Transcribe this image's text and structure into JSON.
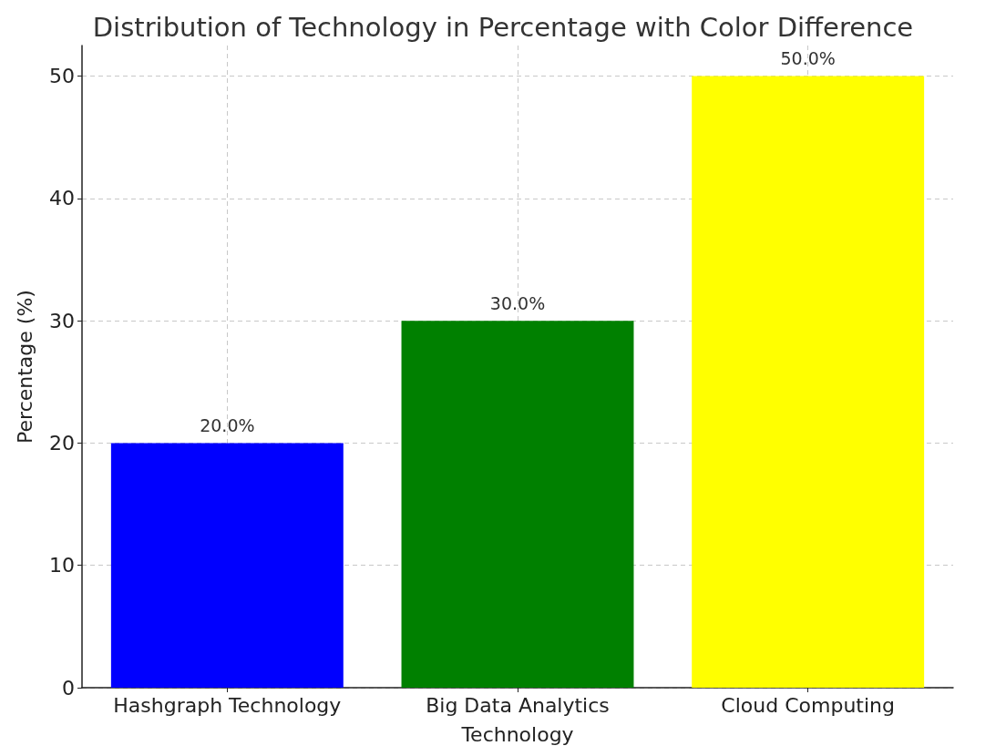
{
  "chart_data": {
    "type": "bar",
    "title": "Distribution of Technology in Percentage with Color Difference",
    "xlabel": "Technology",
    "ylabel": "Percentage (%)",
    "categories": [
      "Hashgraph Technology",
      "Big Data Analytics",
      "Cloud Computing"
    ],
    "values": [
      20,
      30,
      50
    ],
    "colors": [
      "#0000ff",
      "#008000",
      "#ffff00"
    ],
    "value_labels": [
      "20.0%",
      "30.0%",
      "50.0%"
    ],
    "ylim": [
      0,
      52.5
    ],
    "yticks": [
      0,
      10,
      20,
      30,
      40,
      50
    ],
    "grid": true
  }
}
